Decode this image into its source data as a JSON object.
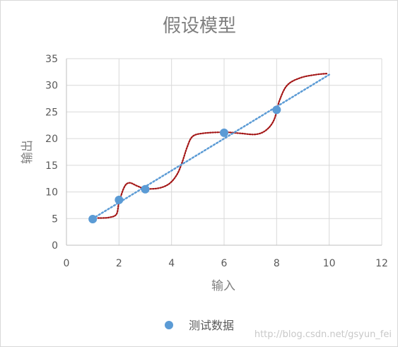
{
  "chart_data": {
    "type": "scatter",
    "title": "假设模型",
    "xlabel": "输入",
    "ylabel": "输出",
    "xlim": [
      0,
      12
    ],
    "ylim": [
      0,
      35
    ],
    "x_ticks": [
      0,
      2,
      4,
      6,
      8,
      10,
      12
    ],
    "y_ticks": [
      0,
      5,
      10,
      15,
      20,
      25,
      30,
      35
    ],
    "grid": true,
    "legend_position": "bottom",
    "series": [
      {
        "name": "测试数据",
        "kind": "scatter",
        "color": "#5b9bd5",
        "x": [
          1,
          2,
          3,
          6,
          8
        ],
        "y": [
          4.9,
          8.5,
          10.5,
          21.1,
          25.4
        ]
      },
      {
        "kind": "linear-trendline",
        "style": "dotted",
        "color": "#5b9bd5",
        "x": [
          1,
          10
        ],
        "y": [
          5.0,
          32.0
        ]
      },
      {
        "kind": "curve",
        "style": "dotted",
        "color": "#a31515",
        "x": [
          1.2,
          1.6,
          1.9,
          2.0,
          2.2,
          2.4,
          2.7,
          3.0,
          3.5,
          3.9,
          4.2,
          4.4,
          4.6,
          4.8,
          5.2,
          6.0,
          6.6,
          7.2,
          7.6,
          7.9,
          8.1,
          8.4,
          8.9,
          9.5,
          9.9
        ],
        "y": [
          5.1,
          5.2,
          5.8,
          8.0,
          10.9,
          11.7,
          11.1,
          10.6,
          10.7,
          11.5,
          13.2,
          15.5,
          18.5,
          20.4,
          21.0,
          21.2,
          21.0,
          20.8,
          21.6,
          23.5,
          27.0,
          30.0,
          31.4,
          32.0,
          32.2
        ]
      }
    ]
  },
  "watermark": "http://blog.csdn.net/gsyun_fei"
}
